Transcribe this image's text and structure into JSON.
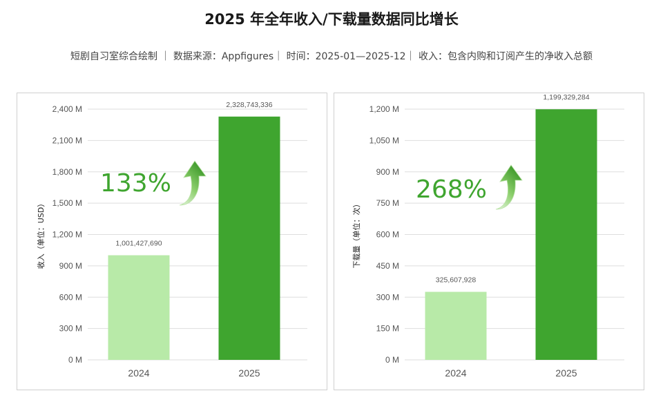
{
  "title": "2025 年全年收入/下载量数据同比增长",
  "subtitle": "短剧自习室综合绘制 ｜ 数据来源：Appfigures｜ 时间：2025-01—2025-12｜ 收入：包含内购和订阅产生的净收入总额",
  "colors": {
    "bar_2024": "#b8eaa8",
    "bar_2025": "#3fa52f",
    "growth_text": "#3fa52f",
    "grid": "#dddddd"
  },
  "chart_data": [
    {
      "type": "bar",
      "categories": [
        "2024",
        "2025"
      ],
      "values": [
        1001427690,
        2328743336
      ],
      "value_labels": [
        "1,001,427,690",
        "2,328,743,336"
      ],
      "ylabel": "收入（单位：USD）",
      "ylim": [
        0,
        2400000000
      ],
      "yticks": [
        0,
        300000000,
        600000000,
        900000000,
        1200000000,
        1500000000,
        1800000000,
        2100000000,
        2400000000
      ],
      "ytick_labels": [
        "0 M",
        "300 M",
        "600 M",
        "900 M",
        "1,200 M",
        "1,500 M",
        "1,800 M",
        "2,100 M",
        "2,400 M"
      ],
      "growth_label": "133%",
      "grid": true
    },
    {
      "type": "bar",
      "categories": [
        "2024",
        "2025"
      ],
      "values": [
        325607928,
        1199329284
      ],
      "value_labels": [
        "325,607,928",
        "1,199,329,284"
      ],
      "ylabel": "下载量（单位：次）",
      "ylim": [
        0,
        1200000000
      ],
      "yticks": [
        0,
        150000000,
        300000000,
        450000000,
        600000000,
        750000000,
        900000000,
        1050000000,
        1200000000
      ],
      "ytick_labels": [
        "0 M",
        "150 M",
        "300 M",
        "450 M",
        "600 M",
        "750 M",
        "900 M",
        "1,050 M",
        "1,200 M"
      ],
      "growth_label": "268%",
      "grid": true
    }
  ]
}
